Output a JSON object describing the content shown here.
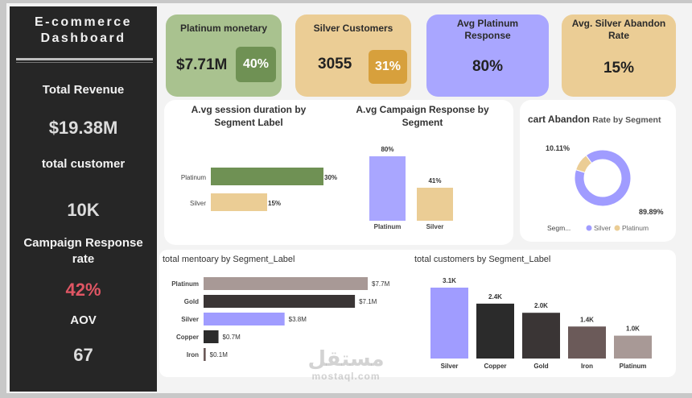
{
  "sidebar": {
    "title_line1": "E-commerce",
    "title_line2": "Dashboard",
    "metrics": [
      {
        "label": "Total Revenue",
        "value": "$19.38M"
      },
      {
        "label": "total customer",
        "value": "10K"
      },
      {
        "label_line1": "Campaign Response",
        "label_line2": "rate",
        "value": "42%"
      },
      {
        "label": "AOV",
        "value": "67"
      }
    ]
  },
  "kpis": {
    "platinum_monetary": {
      "title": "Platinum monetary",
      "value": "$7.71M",
      "pct": "40%"
    },
    "silver_customers": {
      "title": "Silver Customers",
      "value": "3055",
      "pct": "31%"
    },
    "avg_platinum_response": {
      "title_line1": "Avg Platinum",
      "title_line2": "Response",
      "value": "80%"
    },
    "avg_silver_abandon": {
      "title_line1": "Avg. Silver Abandon",
      "title_line2": "Rate",
      "value": "15%"
    }
  },
  "colors": {
    "sidebar": "#262626",
    "green": "#a9c28f",
    "green_dark": "#6f9154",
    "tan": "#ebcd95",
    "tan_dark": "#d7a03c",
    "lavender": "#a9a6ff",
    "silver_bar": "#a09cff",
    "platinum_bar": "#a89996",
    "gold_bar": "#3a3535",
    "copper_bar": "#2b2b2b",
    "iron_bar": "#6b5a59",
    "red": "#e05664"
  },
  "chart_data": [
    {
      "type": "bar",
      "orientation": "horizontal",
      "title_line1": "A.vg  session duration by",
      "title_line2": "Segment Label",
      "categories": [
        "Platinum",
        "Silver"
      ],
      "values": [
        30,
        15
      ],
      "labels": [
        "30%",
        "15%"
      ],
      "xlim": [
        0,
        30
      ]
    },
    {
      "type": "bar",
      "title_line1": "A.vg Campaign Response by",
      "title_line2": "Segment",
      "categories": [
        "Platinum",
        "Silver"
      ],
      "values": [
        80,
        41
      ],
      "labels": [
        "80%",
        "41%"
      ],
      "ylim": [
        0,
        80
      ]
    },
    {
      "type": "pie",
      "donut": true,
      "title_part1": "cart Abandon",
      "title_part2": "Rate by Segment",
      "legend_title": "Segm...",
      "slices": [
        {
          "name": "Silver",
          "value": 89.89,
          "label": "89.89%"
        },
        {
          "name": "Platinum",
          "value": 10.11,
          "label": "10.11%"
        }
      ],
      "legend": "bottom"
    },
    {
      "type": "bar",
      "orientation": "horizontal",
      "title": "total mentoary by Segment_Label",
      "categories": [
        "Platinum",
        "Gold",
        "Silver",
        "Copper",
        "Iron"
      ],
      "values": [
        7.7,
        7.1,
        3.8,
        0.7,
        0.1
      ],
      "labels": [
        "$7.7M",
        "$7.1M",
        "$3.8M",
        "$0.7M",
        "$0.1M"
      ],
      "xlim": [
        0,
        7.7
      ]
    },
    {
      "type": "bar",
      "title": "total customers by Segment_Label",
      "categories": [
        "Silver",
        "Copper",
        "Gold",
        "Iron",
        "Platinum"
      ],
      "values": [
        3.1,
        2.4,
        2.0,
        1.4,
        1.0
      ],
      "labels": [
        "3.1K",
        "2.4K",
        "2.0K",
        "1.4K",
        "1.0K"
      ],
      "ylim": [
        0,
        3.1
      ]
    }
  ],
  "watermark": {
    "arabic": "مستقل",
    "latin": "mostaql.com"
  }
}
